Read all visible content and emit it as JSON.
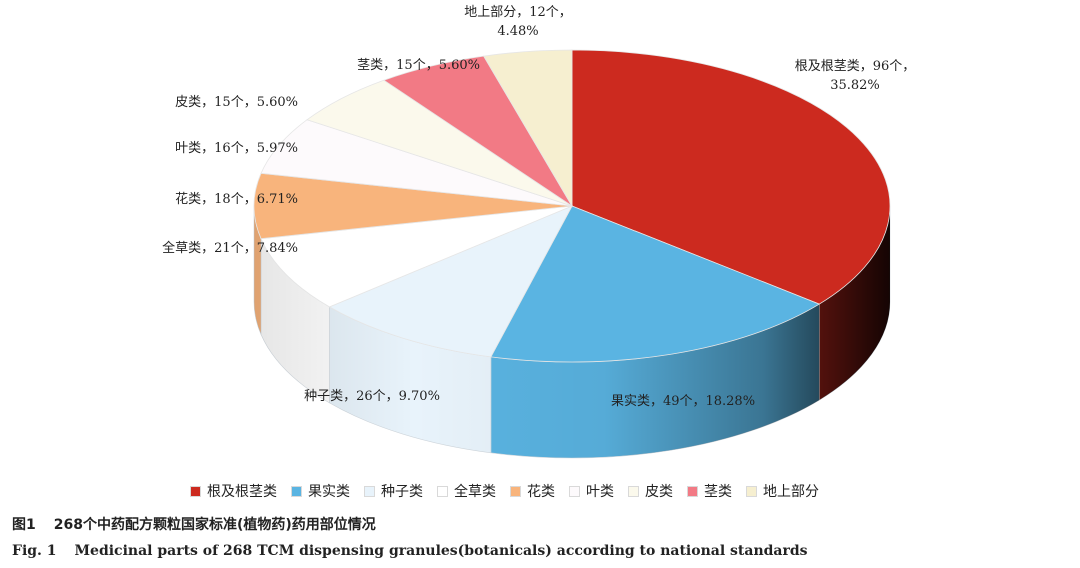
{
  "chart_data": {
    "type": "pie",
    "style": "3d",
    "start_angle_deg": 0,
    "direction": "clockwise",
    "legend_position": "bottom",
    "slices": [
      {
        "name": "根及根茎类",
        "count": 96,
        "percent": 35.82,
        "label": "根及根茎类，96个，",
        "label2": "35.82%",
        "color": "#cc2a1f"
      },
      {
        "name": "果实类",
        "count": 49,
        "percent": 18.28,
        "label": "果实类，49个，18.28%",
        "color": "#5ab4e2"
      },
      {
        "name": "种子类",
        "count": 26,
        "percent": 9.7,
        "label": "种子类，26个，9.70%",
        "color": "#e8f3fb"
      },
      {
        "name": "全草类",
        "count": 21,
        "percent": 7.84,
        "label": "全草类，21个，7.84%",
        "color": "#ffffff"
      },
      {
        "name": "花类",
        "count": 18,
        "percent": 6.71,
        "label": "花类，18个，6.71%",
        "color": "#f8b47c"
      },
      {
        "name": "叶类",
        "count": 16,
        "percent": 5.97,
        "label": "叶类，16个，5.97%",
        "color": "#fdfafc"
      },
      {
        "name": "皮类",
        "count": 15,
        "percent": 5.6,
        "label": "皮类，15个，5.60%",
        "color": "#fbf9ec"
      },
      {
        "name": "茎类",
        "count": 15,
        "percent": 5.6,
        "label": "茎类，15个，5.60%",
        "color": "#f27a85"
      },
      {
        "name": "地上部分",
        "count": 12,
        "percent": 4.48,
        "label": "地上部分，12个，",
        "label2": "4.48%",
        "color": "#f6efd0"
      }
    ]
  },
  "caption": {
    "cn_number": "图1",
    "cn_text": "268个中药配方颗粒国家标准(植物药)药用部位情况",
    "en_number": "Fig. 1",
    "en_text": "Medicinal parts of 268 TCM dispensing granules(botanicals) according to national standards"
  }
}
